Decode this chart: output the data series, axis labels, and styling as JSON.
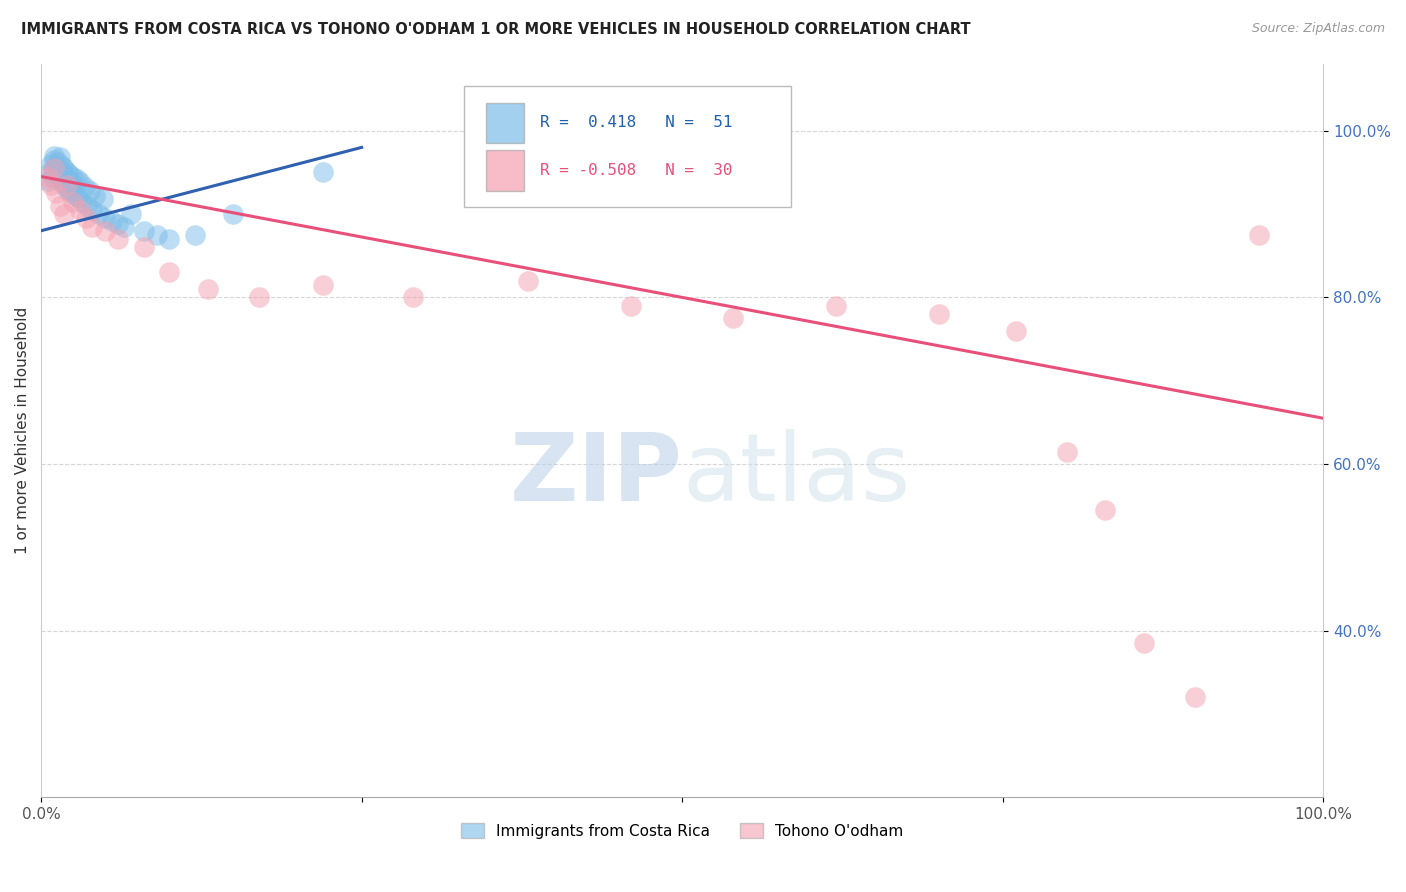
{
  "title": "IMMIGRANTS FROM COSTA RICA VS TOHONO O'ODHAM 1 OR MORE VEHICLES IN HOUSEHOLD CORRELATION CHART",
  "source": "Source: ZipAtlas.com",
  "ylabel": "1 or more Vehicles in Household",
  "xlim": [
    0.0,
    1.0
  ],
  "ylim": [
    0.2,
    1.08
  ],
  "xticks": [
    0.0,
    0.25,
    0.5,
    0.75,
    1.0
  ],
  "xticklabels": [
    "0.0%",
    "",
    "",
    "",
    "100.0%"
  ],
  "ytick_positions": [
    0.4,
    0.6,
    0.8,
    1.0
  ],
  "ytick_labels": [
    "40.0%",
    "60.0%",
    "80.0%",
    "100.0%"
  ],
  "blue_R": 0.418,
  "blue_N": 51,
  "pink_R": -0.508,
  "pink_N": 30,
  "blue_color": "#7bbde8",
  "pink_color": "#f4a0b0",
  "blue_line_color": "#3060b0",
  "pink_line_color": "#e8507a",
  "watermark_zip": "ZIP",
  "watermark_atlas": "atlas",
  "legend_label_blue": "Immigrants from Costa Rica",
  "legend_label_pink": "Tohono O'odham",
  "blue_scatter_x": [
    0.005,
    0.007,
    0.008,
    0.009,
    0.01,
    0.01,
    0.01,
    0.011,
    0.012,
    0.013,
    0.014,
    0.015,
    0.015,
    0.016,
    0.016,
    0.017,
    0.018,
    0.018,
    0.019,
    0.02,
    0.02,
    0.021,
    0.022,
    0.022,
    0.023,
    0.024,
    0.025,
    0.026,
    0.027,
    0.028,
    0.029,
    0.03,
    0.032,
    0.034,
    0.036,
    0.038,
    0.04,
    0.042,
    0.045,
    0.048,
    0.05,
    0.055,
    0.06,
    0.065,
    0.07,
    0.08,
    0.09,
    0.1,
    0.12,
    0.15,
    0.22
  ],
  "blue_scatter_y": [
    0.94,
    0.95,
    0.96,
    0.945,
    0.955,
    0.965,
    0.97,
    0.958,
    0.948,
    0.962,
    0.952,
    0.942,
    0.968,
    0.938,
    0.958,
    0.948,
    0.935,
    0.955,
    0.945,
    0.93,
    0.95,
    0.94,
    0.928,
    0.948,
    0.938,
    0.925,
    0.945,
    0.935,
    0.922,
    0.942,
    0.92,
    0.938,
    0.915,
    0.932,
    0.91,
    0.928,
    0.905,
    0.922,
    0.9,
    0.918,
    0.895,
    0.892,
    0.888,
    0.885,
    0.9,
    0.88,
    0.875,
    0.87,
    0.875,
    0.9,
    0.95
  ],
  "pink_scatter_x": [
    0.005,
    0.008,
    0.01,
    0.012,
    0.015,
    0.018,
    0.02,
    0.025,
    0.03,
    0.035,
    0.04,
    0.05,
    0.06,
    0.08,
    0.1,
    0.13,
    0.17,
    0.22,
    0.29,
    0.38,
    0.46,
    0.54,
    0.62,
    0.7,
    0.76,
    0.8,
    0.83,
    0.86,
    0.9,
    0.95
  ],
  "pink_scatter_y": [
    0.945,
    0.935,
    0.955,
    0.925,
    0.91,
    0.9,
    0.935,
    0.915,
    0.905,
    0.895,
    0.885,
    0.88,
    0.87,
    0.86,
    0.83,
    0.81,
    0.8,
    0.815,
    0.8,
    0.82,
    0.79,
    0.775,
    0.79,
    0.78,
    0.76,
    0.615,
    0.545,
    0.385,
    0.32,
    0.875
  ],
  "blue_line_x": [
    0.0,
    0.25
  ],
  "blue_line_y": [
    0.88,
    0.98
  ],
  "pink_line_x": [
    0.0,
    1.0
  ],
  "pink_line_y": [
    0.945,
    0.655
  ]
}
